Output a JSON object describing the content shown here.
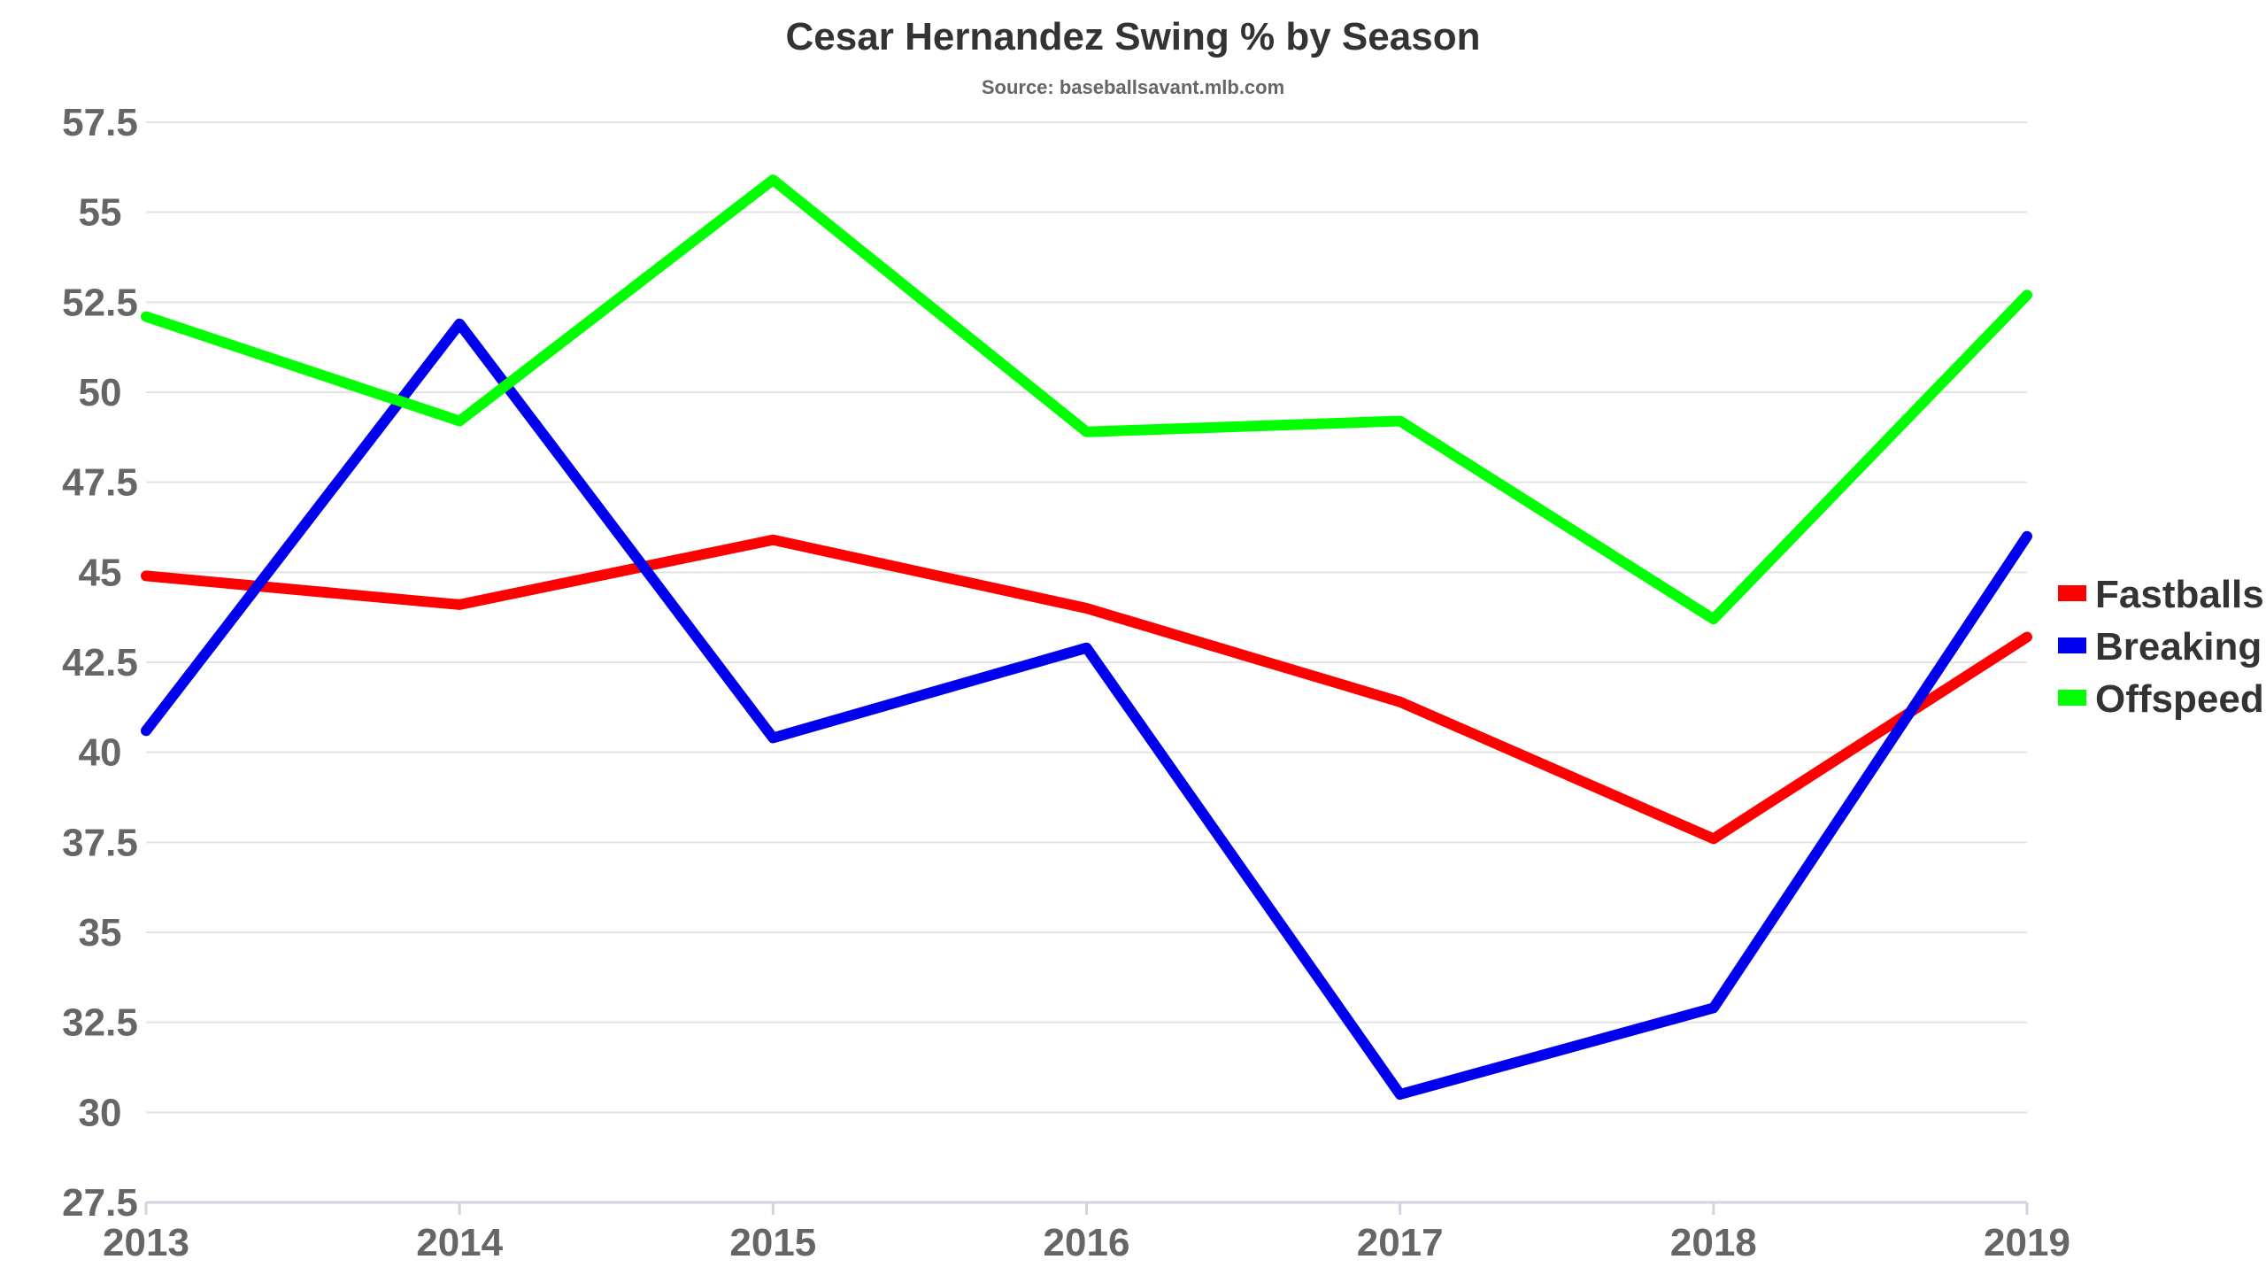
{
  "chart_data": {
    "type": "line",
    "title": "Cesar Hernandez Swing % by Season",
    "subtitle": "Source: baseballsavant.mlb.com",
    "xlabel": "",
    "ylabel": "",
    "x": [
      "2013",
      "2014",
      "2015",
      "2016",
      "2017",
      "2018",
      "2019"
    ],
    "y_ticks": [
      "27.5",
      "30",
      "32.5",
      "35",
      "37.5",
      "40",
      "42.5",
      "45",
      "47.5",
      "50",
      "52.5",
      "55",
      "57.5"
    ],
    "ylim": [
      27.5,
      57.5
    ],
    "grid": true,
    "legend_position": "right",
    "series": [
      {
        "name": "Fastballs",
        "color": "#ff0000",
        "values": [
          44.9,
          44.1,
          45.9,
          44.0,
          41.4,
          37.6,
          43.2
        ]
      },
      {
        "name": "Breaking",
        "color": "#0000ee",
        "values": [
          40.6,
          51.9,
          40.4,
          42.9,
          30.5,
          32.9,
          46.0
        ]
      },
      {
        "name": "Offspeed",
        "color": "#00ff00",
        "values": [
          52.1,
          49.2,
          55.9,
          48.9,
          49.2,
          43.7,
          52.7
        ]
      }
    ]
  }
}
